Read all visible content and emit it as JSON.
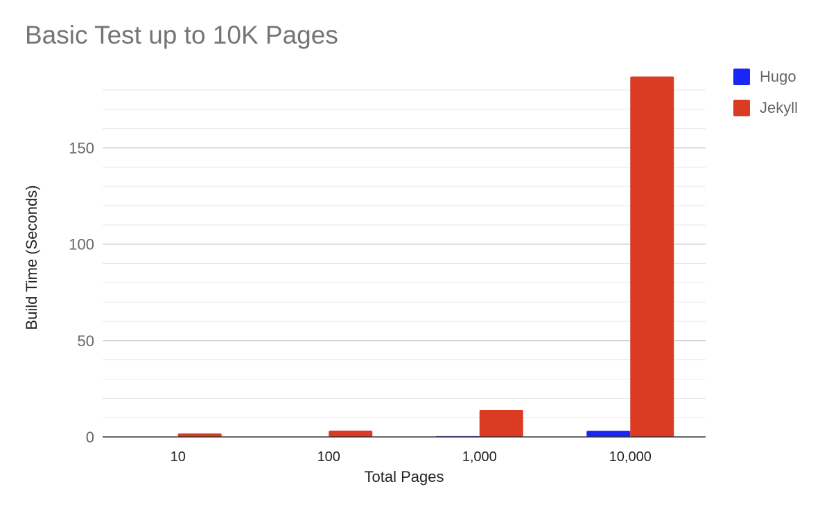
{
  "chart_data": {
    "type": "bar",
    "title": "Basic Test up to 10K Pages",
    "xlabel": "Total Pages",
    "ylabel": "Build Time (Seconds)",
    "categories": [
      "10",
      "100",
      "1,000",
      "10,000"
    ],
    "series": [
      {
        "name": "Hugo",
        "color": "#1a26f5",
        "values": [
          0.1,
          0.2,
          0.4,
          3.2
        ]
      },
      {
        "name": "Jekyll",
        "color": "#db3b23",
        "values": [
          1.8,
          3.3,
          14,
          187
        ]
      }
    ],
    "y_ticks": [
      0,
      50,
      100,
      150
    ],
    "ylim": [
      0,
      180
    ],
    "grid": true,
    "legend": "right"
  }
}
